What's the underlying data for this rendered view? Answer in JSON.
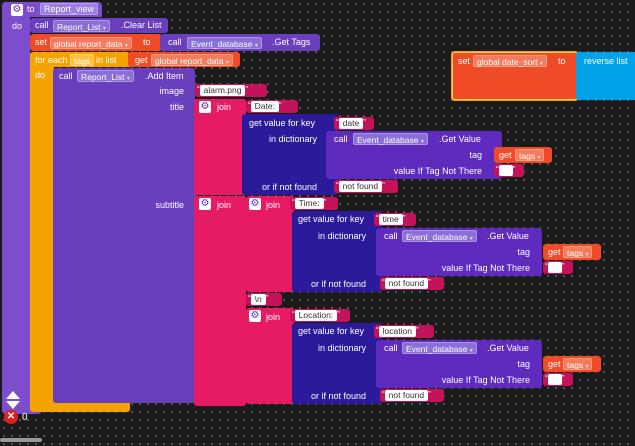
{
  "procedure": {
    "to": "to",
    "name": "Report_view",
    "do": "do"
  },
  "clear_call": {
    "call": "call",
    "component": "Report_List",
    "method": ".Clear List"
  },
  "set_global": {
    "set": "set",
    "var": "global report_data",
    "to": "to",
    "call": "call",
    "component": "Event_database",
    "method": ".Get Tags"
  },
  "for_each": {
    "for_each": "for each",
    "item": "tags",
    "in_list": "in list",
    "get": "get",
    "var": "global report_data",
    "do": "do"
  },
  "add_item": {
    "call": "call",
    "component": "Report_List",
    "method": ".Add Item",
    "image_label": "image",
    "image_value": "alarm.png",
    "title_label": "title",
    "subtitle_label": "subtitle"
  },
  "join_label": "join",
  "title_join": {
    "prefix": "Date:",
    "get_value_for_key": "get value for key",
    "key": "date",
    "in_dictionary": "in dictionary",
    "call": "call",
    "component": "Event_database",
    "method": ".Get Value",
    "tag_label": "tag",
    "get": "get",
    "tag_var": "tags",
    "value_if_not_there": "value If Tag Not There",
    "default_value": "",
    "or_if_not_found": "or if not found",
    "not_found": "not found"
  },
  "subtitle_time": {
    "prefix": "Time:",
    "get_value_for_key": "get value for key",
    "key": "time",
    "in_dictionary": "in dictionary",
    "call": "call",
    "component": "Event_database",
    "method": ".Get Value",
    "tag_label": "tag",
    "get": "get",
    "tag_var": "tags",
    "value_if_not_there": "value If Tag Not There",
    "default_value": "",
    "or_if_not_found": "or if not found",
    "not_found": "not found"
  },
  "newline": "\\n",
  "subtitle_location": {
    "prefix": "Location:",
    "get_value_for_key": "get value for key",
    "key": "location",
    "in_dictionary": "in dictionary",
    "call": "call",
    "component": "Event_database",
    "method": ".Get Value",
    "tag_label": "tag",
    "get": "get",
    "tag_var": "tags",
    "value_if_not_there": "value If Tag Not There",
    "default_value": "",
    "or_if_not_found": "or if not found",
    "not_found": "not found"
  },
  "side_block": {
    "set": "set",
    "var": "global date_sort",
    "to": "to",
    "reverse": "reverse list"
  },
  "status": {
    "error_count": "0"
  },
  "colors": {
    "procedure": "#7c4dcc",
    "loop": "#f5a300",
    "variable": "#ef4b26",
    "text": "#e51c63",
    "component": "#6a3fbd",
    "dictionary": "#2b1a9a",
    "list": "#00a3e8"
  }
}
